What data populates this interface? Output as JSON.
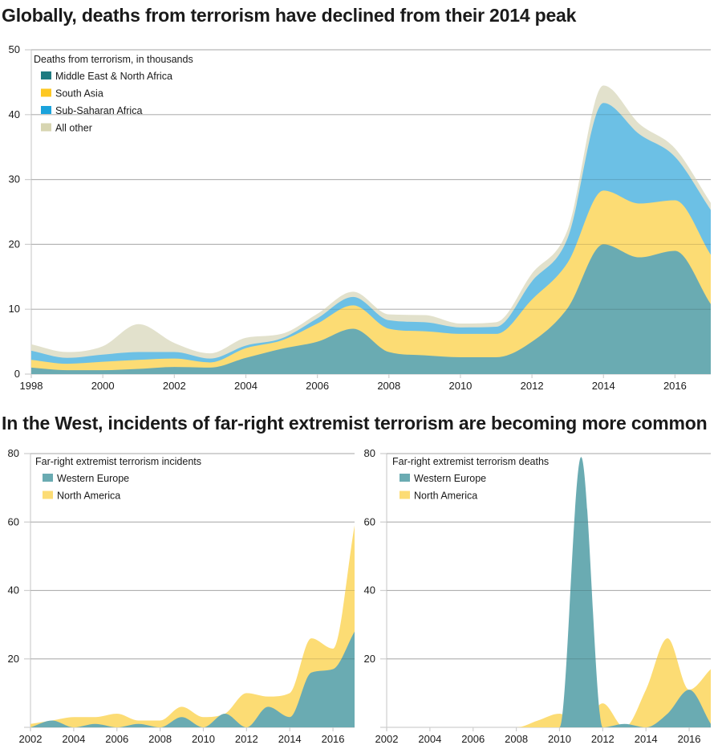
{
  "headlines": {
    "top": "Globally, deaths from terrorism have declined from their 2014 peak",
    "bottom": "In the West, incidents of far-right extremist terrorism are becoming more common"
  },
  "chart_data": [
    {
      "id": "global",
      "type": "area",
      "stacked": true,
      "title": "Globally, deaths from terrorism have declined from their 2014 peak",
      "legend_title": "Deaths from terrorism, in thousands",
      "legend_position": "top-left",
      "xlabel": "",
      "ylabel": "",
      "x": [
        1998,
        1999,
        2000,
        2001,
        2002,
        2003,
        2004,
        2005,
        2006,
        2007,
        2008,
        2009,
        2010,
        2011,
        2012,
        2013,
        2014,
        2015,
        2016,
        2017
      ],
      "x_ticks": [
        "1998",
        "2000",
        "2002",
        "2004",
        "2006",
        "2008",
        "2010",
        "2012",
        "2014",
        "2016"
      ],
      "ylim": [
        0,
        50
      ],
      "y_ticks": [
        "0",
        "10",
        "20",
        "30",
        "40",
        "50"
      ],
      "grid": true,
      "series": [
        {
          "name": "Middle East & North Africa",
          "color": "#6aabb2",
          "legend_color": "#1e7b80",
          "values": [
            1.0,
            0.6,
            0.6,
            0.8,
            1.1,
            1.0,
            2.5,
            3.9,
            5.0,
            7.0,
            3.4,
            2.9,
            2.6,
            2.6,
            5.0,
            10.2,
            20.0,
            18.0,
            19.0,
            10.8
          ]
        },
        {
          "name": "South Asia",
          "color": "#fcdc74",
          "legend_color": "#fdc823",
          "values": [
            1.2,
            1.0,
            1.3,
            1.4,
            1.3,
            0.8,
            1.5,
            1.3,
            2.8,
            3.6,
            3.6,
            3.7,
            3.6,
            3.6,
            6.5,
            7.0,
            8.3,
            8.3,
            7.8,
            7.6
          ]
        },
        {
          "name": "Sub-Saharan Africa",
          "color": "#6cc0e5",
          "legend_color": "#1ba3dc",
          "values": [
            1.4,
            0.9,
            1.1,
            1.2,
            1.0,
            0.6,
            0.4,
            0.3,
            0.8,
            1.3,
            1.3,
            1.4,
            1.0,
            1.1,
            2.8,
            3.8,
            13.5,
            10.7,
            6.7,
            6.9
          ]
        },
        {
          "name": "All other",
          "color": "#e2e1cc",
          "legend_color": "#d7d5b1",
          "values": [
            1.0,
            0.9,
            1.3,
            4.3,
            1.4,
            0.8,
            1.2,
            0.7,
            0.7,
            0.8,
            0.9,
            1.1,
            0.6,
            0.7,
            1.2,
            1.3,
            2.7,
            1.6,
            1.3,
            1.1
          ]
        }
      ]
    },
    {
      "id": "incidents",
      "type": "area",
      "stacked": true,
      "title": "In the West, incidents of far-right extremist terrorism are becoming more common",
      "legend_title": "Far-right extremist terrorism incidents",
      "legend_position": "top-left",
      "xlabel": "",
      "ylabel": "",
      "x": [
        2002,
        2003,
        2004,
        2005,
        2006,
        2007,
        2008,
        2009,
        2010,
        2011,
        2012,
        2013,
        2014,
        2015,
        2016,
        2017
      ],
      "x_ticks": [
        "2002",
        "2004",
        "2006",
        "2008",
        "2010",
        "2012",
        "2014",
        "2016"
      ],
      "ylim": [
        0,
        80
      ],
      "y_ticks": [
        "20",
        "40",
        "60",
        "80"
      ],
      "grid": true,
      "series": [
        {
          "name": "Western Europe",
          "color": "#6aabb2",
          "legend_color": "#6aabb2",
          "values": [
            0,
            2,
            0,
            1,
            0,
            1,
            0,
            3,
            0,
            4,
            0,
            6,
            3,
            16,
            17,
            28
          ]
        },
        {
          "name": "North America",
          "color": "#fcdc74",
          "legend_color": "#fcdc74",
          "values": [
            1,
            0,
            3,
            2,
            4,
            1,
            2,
            3,
            3,
            0,
            10,
            3,
            7,
            10,
            6,
            31
          ]
        }
      ]
    },
    {
      "id": "deaths",
      "type": "area",
      "stacked": false,
      "title": "Far-right extremist terrorism deaths",
      "legend_title": "Far-right extremist terrorism deaths",
      "legend_position": "top-left",
      "xlabel": "",
      "ylabel": "",
      "x": [
        2002,
        2003,
        2004,
        2005,
        2006,
        2007,
        2008,
        2009,
        2010,
        2011,
        2012,
        2013,
        2014,
        2015,
        2016,
        2017
      ],
      "x_ticks": [
        "2002",
        "2004",
        "2006",
        "2008",
        "2010",
        "2012",
        "2014",
        "2016"
      ],
      "ylim": [
        0,
        80
      ],
      "y_ticks": [
        "20",
        "40",
        "60",
        "80"
      ],
      "grid": true,
      "series": [
        {
          "name": "Western Europe",
          "color": "#6aabb2",
          "legend_color": "#6aabb2",
          "values": [
            0,
            0,
            0,
            0,
            0,
            0,
            0,
            0,
            0,
            79,
            0,
            1,
            0,
            4,
            11,
            1
          ]
        },
        {
          "name": "North America",
          "color": "#fcdc74",
          "legend_color": "#fcdc74",
          "values": [
            0,
            0,
            0,
            0,
            0,
            0,
            0,
            2,
            4,
            0,
            7,
            0,
            11,
            26,
            11,
            17
          ]
        }
      ]
    }
  ]
}
